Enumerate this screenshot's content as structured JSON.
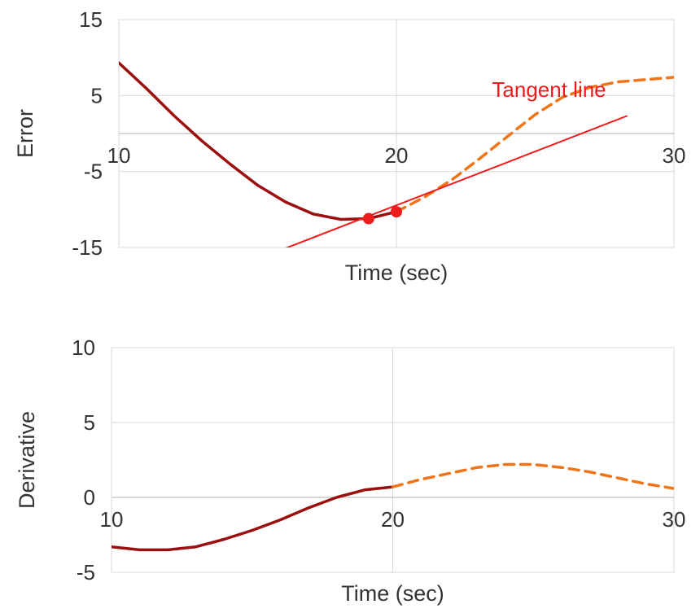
{
  "chart_data": [
    {
      "type": "line",
      "xlabel": "Time (sec)",
      "ylabel": "Error",
      "xlim": [
        10,
        30
      ],
      "ylim": [
        -15,
        15
      ],
      "x_ticks": [
        "10",
        "20",
        "30"
      ],
      "y_ticks": [
        "15",
        "5",
        "-5",
        "-15"
      ],
      "grid": true,
      "series": [
        {
          "style": "solid",
          "color": "#9b0f0f",
          "x": [
            10,
            11,
            12,
            13,
            14,
            15,
            16,
            17,
            18,
            19,
            20
          ],
          "y": [
            9.3,
            5.9,
            2.3,
            -1.0,
            -4.0,
            -6.8,
            -9.0,
            -10.6,
            -11.3,
            -11.2,
            -10.3
          ]
        },
        {
          "style": "dashed",
          "color": "#f07418",
          "x": [
            20,
            21,
            22,
            23,
            24,
            25,
            26,
            27,
            28,
            29,
            30
          ],
          "y": [
            -10.3,
            -8.4,
            -6.1,
            -3.3,
            -0.4,
            2.5,
            4.8,
            6.1,
            6.8,
            7.1,
            7.4
          ]
        },
        {
          "style": "solid",
          "color": "#ee1c1c",
          "x": [
            15.3,
            28.3
          ],
          "y": [
            -16.1,
            2.3
          ]
        }
      ],
      "points": {
        "color": "#ee1c1c",
        "x": [
          19,
          20
        ],
        "y": [
          -11.2,
          -10.3
        ]
      },
      "annotation": {
        "text": "Tangent line",
        "color": "#ee1c1c",
        "x": 25.5,
        "y": 4.8
      }
    },
    {
      "type": "line",
      "xlabel": "Time (sec)",
      "ylabel": "Derivative",
      "xlim": [
        10,
        30
      ],
      "ylim": [
        -5,
        10
      ],
      "x_ticks": [
        "10",
        "20",
        "30"
      ],
      "y_ticks": [
        "10",
        "5",
        "0",
        "-5"
      ],
      "grid": true,
      "series": [
        {
          "style": "solid",
          "color": "#9b0f0f",
          "x": [
            10,
            11,
            12,
            13,
            14,
            15,
            16,
            17,
            18,
            19,
            20
          ],
          "y": [
            -3.3,
            -3.5,
            -3.5,
            -3.3,
            -2.8,
            -2.2,
            -1.5,
            -0.7,
            0.0,
            0.5,
            0.7
          ]
        },
        {
          "style": "dashed",
          "color": "#f07418",
          "x": [
            20,
            21,
            22,
            23,
            24,
            25,
            26,
            27,
            28,
            29,
            30
          ],
          "y": [
            0.7,
            1.2,
            1.6,
            2.0,
            2.2,
            2.2,
            2.0,
            1.7,
            1.3,
            0.9,
            0.6
          ]
        }
      ]
    }
  ]
}
